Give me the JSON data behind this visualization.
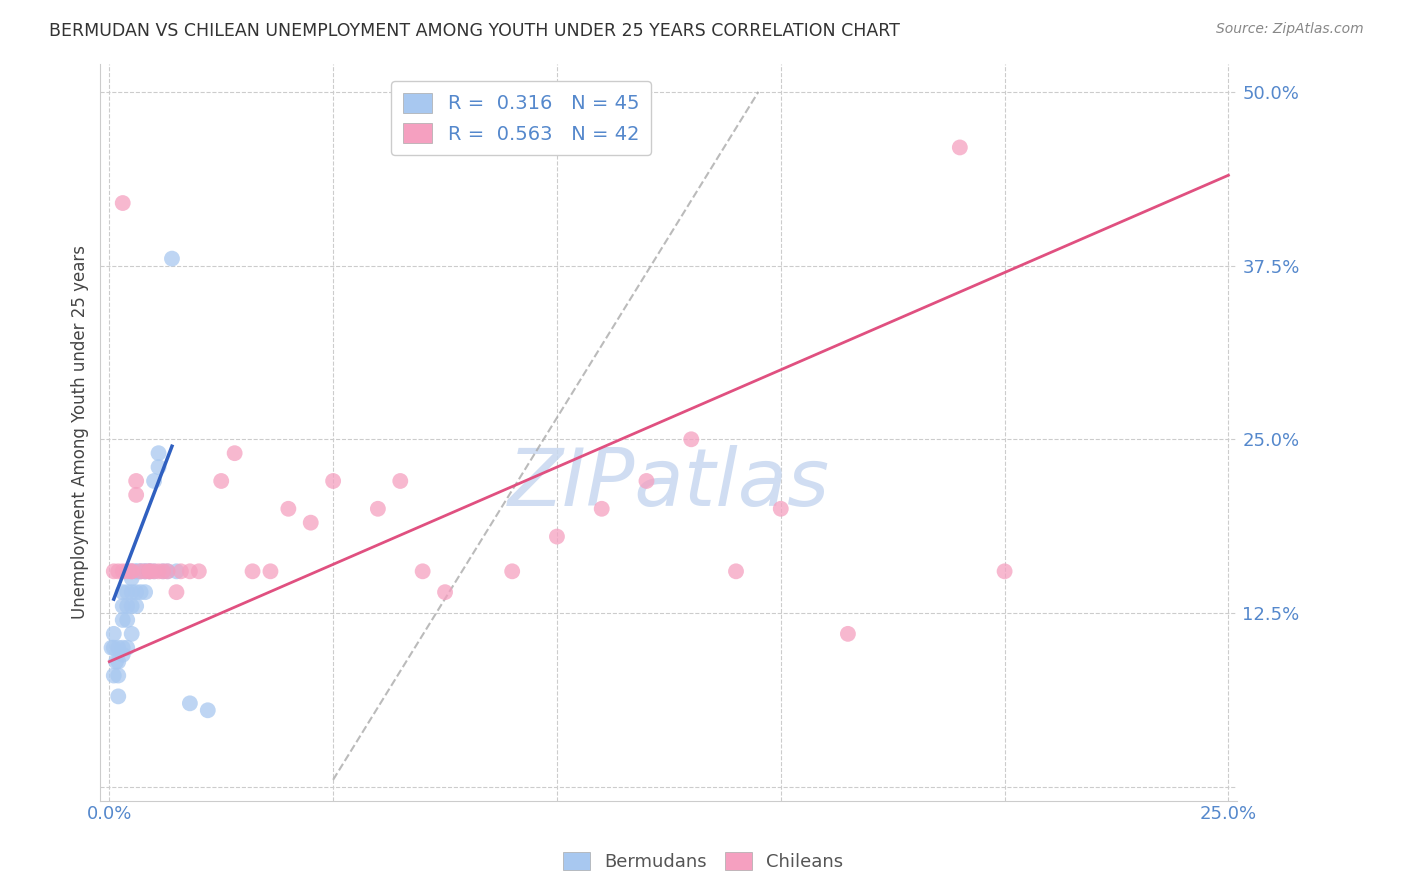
{
  "title": "BERMUDAN VS CHILEAN UNEMPLOYMENT AMONG YOUTH UNDER 25 YEARS CORRELATION CHART",
  "source": "Source: ZipAtlas.com",
  "ylabel": "Unemployment Among Youth under 25 years",
  "xlim": [
    -0.002,
    0.252
  ],
  "ylim": [
    -0.01,
    0.52
  ],
  "blue_R": 0.316,
  "blue_N": 45,
  "pink_R": 0.563,
  "pink_N": 42,
  "blue_color": "#A8C8F0",
  "pink_color": "#F5A0C0",
  "blue_line_color": "#3060C0",
  "pink_line_color": "#E05080",
  "tick_label_color": "#5588CC",
  "grid_color": "#CCCCCC",
  "watermark_color": "#C8D8F0",
  "blue_scatter_x": [
    0.0005,
    0.001,
    0.001,
    0.001,
    0.0015,
    0.002,
    0.002,
    0.002,
    0.002,
    0.003,
    0.003,
    0.003,
    0.003,
    0.003,
    0.004,
    0.004,
    0.004,
    0.004,
    0.005,
    0.005,
    0.005,
    0.005,
    0.005,
    0.006,
    0.006,
    0.006,
    0.006,
    0.007,
    0.007,
    0.007,
    0.008,
    0.008,
    0.008,
    0.009,
    0.009,
    0.01,
    0.01,
    0.011,
    0.011,
    0.012,
    0.013,
    0.014,
    0.015,
    0.018,
    0.022
  ],
  "blue_scatter_y": [
    0.1,
    0.11,
    0.1,
    0.08,
    0.09,
    0.1,
    0.09,
    0.08,
    0.065,
    0.14,
    0.13,
    0.12,
    0.1,
    0.095,
    0.14,
    0.13,
    0.12,
    0.1,
    0.155,
    0.15,
    0.14,
    0.13,
    0.11,
    0.155,
    0.155,
    0.14,
    0.13,
    0.155,
    0.155,
    0.14,
    0.155,
    0.155,
    0.14,
    0.155,
    0.155,
    0.155,
    0.22,
    0.23,
    0.24,
    0.155,
    0.155,
    0.38,
    0.155,
    0.06,
    0.055
  ],
  "pink_scatter_x": [
    0.001,
    0.002,
    0.003,
    0.003,
    0.004,
    0.005,
    0.005,
    0.006,
    0.006,
    0.007,
    0.008,
    0.009,
    0.009,
    0.01,
    0.011,
    0.012,
    0.013,
    0.015,
    0.016,
    0.018,
    0.02,
    0.025,
    0.028,
    0.032,
    0.036,
    0.04,
    0.045,
    0.05,
    0.06,
    0.065,
    0.07,
    0.075,
    0.09,
    0.1,
    0.11,
    0.12,
    0.13,
    0.14,
    0.15,
    0.165,
    0.19,
    0.2
  ],
  "pink_scatter_y": [
    0.155,
    0.155,
    0.155,
    0.42,
    0.155,
    0.155,
    0.155,
    0.22,
    0.21,
    0.155,
    0.155,
    0.155,
    0.155,
    0.155,
    0.155,
    0.155,
    0.155,
    0.14,
    0.155,
    0.155,
    0.155,
    0.22,
    0.24,
    0.155,
    0.155,
    0.2,
    0.19,
    0.22,
    0.2,
    0.22,
    0.155,
    0.14,
    0.155,
    0.18,
    0.2,
    0.22,
    0.25,
    0.155,
    0.2,
    0.11,
    0.46,
    0.155
  ],
  "blue_line_x": [
    0.001,
    0.014
  ],
  "blue_line_y": [
    0.135,
    0.245
  ],
  "pink_line_x": [
    0.0,
    0.25
  ],
  "pink_line_y": [
    0.09,
    0.44
  ],
  "diag_line_x": [
    0.05,
    0.145
  ],
  "diag_line_y": [
    0.005,
    0.5
  ]
}
